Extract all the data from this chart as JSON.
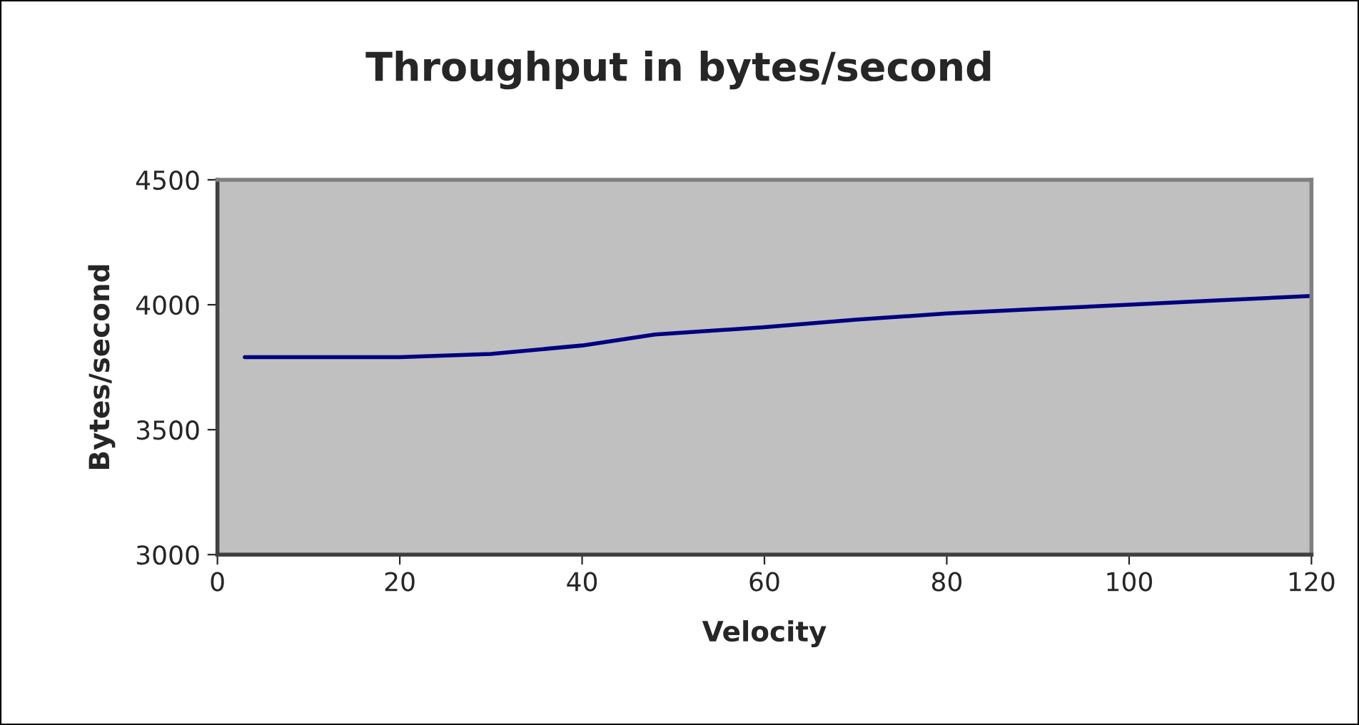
{
  "chart_data": {
    "type": "line",
    "title": "Throughput in bytes/second",
    "xlabel": "Velocity",
    "ylabel": "Bytes/second",
    "x": [
      3,
      10,
      20,
      30,
      40,
      48,
      60,
      70,
      80,
      90,
      100,
      110,
      120
    ],
    "series": [
      {
        "color": "#000080",
        "values": [
          3790,
          3790,
          3790,
          3803,
          3837,
          3881,
          3910,
          3940,
          3965,
          3983,
          4000,
          4018,
          4035
        ]
      }
    ],
    "xlim": [
      0,
      120
    ],
    "xticks": [
      0,
      20,
      40,
      60,
      80,
      100,
      120
    ],
    "ylim": [
      3000,
      4500
    ],
    "yticks": [
      3000,
      3500,
      4000,
      4500
    ],
    "grid": false,
    "marker": "none",
    "line_style": "solid"
  }
}
